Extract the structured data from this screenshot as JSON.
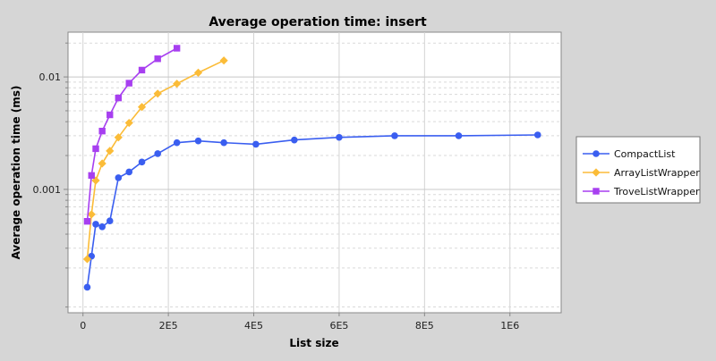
{
  "chart_data": {
    "type": "line",
    "title": "Average operation time: insert",
    "xlabel": "List size",
    "ylabel": "Average operation time (ms)",
    "xlim": [
      -35000,
      1120000
    ],
    "ylim": [
      8e-05,
      0.025
    ],
    "y_scale": "log",
    "x_ticks": [
      {
        "value": 0,
        "label": "0"
      },
      {
        "value": 200000,
        "label": "2E5"
      },
      {
        "value": 400000,
        "label": "4E5"
      },
      {
        "value": 600000,
        "label": "6E5"
      },
      {
        "value": 800000,
        "label": "8E5"
      },
      {
        "value": 1000000,
        "label": "1E6"
      }
    ],
    "y_ticks": [
      {
        "value": 0.001,
        "label": "0.001"
      },
      {
        "value": 0.01,
        "label": "0.01"
      }
    ],
    "grid": true,
    "legend_position": "right",
    "series": [
      {
        "name": "CompactList",
        "color": "#3a5ef0",
        "marker": "circle",
        "points": [
          {
            "x": 10000,
            "y": 0.000135
          },
          {
            "x": 20000,
            "y": 0.000255
          },
          {
            "x": 30000,
            "y": 0.00049
          },
          {
            "x": 45000,
            "y": 0.000465
          },
          {
            "x": 63000,
            "y": 0.000525
          },
          {
            "x": 83000,
            "y": 0.00127
          },
          {
            "x": 108000,
            "y": 0.00143
          },
          {
            "x": 138000,
            "y": 0.00175
          },
          {
            "x": 175000,
            "y": 0.00208
          },
          {
            "x": 220000,
            "y": 0.0026
          },
          {
            "x": 270000,
            "y": 0.0027
          },
          {
            "x": 330000,
            "y": 0.0026
          },
          {
            "x": 405000,
            "y": 0.00252
          },
          {
            "x": 495000,
            "y": 0.00275
          },
          {
            "x": 600000,
            "y": 0.0029
          },
          {
            "x": 730000,
            "y": 0.003
          },
          {
            "x": 880000,
            "y": 0.003
          },
          {
            "x": 1065000,
            "y": 0.00305
          }
        ]
      },
      {
        "name": "ArrayListWrapper",
        "color": "#fbbc38",
        "marker": "diamond",
        "points": [
          {
            "x": 10000,
            "y": 0.00024
          },
          {
            "x": 20000,
            "y": 0.0006
          },
          {
            "x": 30000,
            "y": 0.0012
          },
          {
            "x": 45000,
            "y": 0.0017
          },
          {
            "x": 63000,
            "y": 0.0022
          },
          {
            "x": 83000,
            "y": 0.0029
          },
          {
            "x": 108000,
            "y": 0.0039
          },
          {
            "x": 138000,
            "y": 0.0054
          },
          {
            "x": 175000,
            "y": 0.0071
          },
          {
            "x": 220000,
            "y": 0.0087
          },
          {
            "x": 270000,
            "y": 0.0109
          },
          {
            "x": 330000,
            "y": 0.014
          }
        ]
      },
      {
        "name": "TroveListWrapper",
        "color": "#a73ff0",
        "marker": "square",
        "points": [
          {
            "x": 10000,
            "y": 0.00052
          },
          {
            "x": 20000,
            "y": 0.00133
          },
          {
            "x": 30000,
            "y": 0.0023
          },
          {
            "x": 45000,
            "y": 0.0033
          },
          {
            "x": 63000,
            "y": 0.0046
          },
          {
            "x": 83000,
            "y": 0.0065
          },
          {
            "x": 108000,
            "y": 0.0088
          },
          {
            "x": 138000,
            "y": 0.0115
          },
          {
            "x": 175000,
            "y": 0.0145
          },
          {
            "x": 220000,
            "y": 0.018
          }
        ]
      }
    ]
  }
}
